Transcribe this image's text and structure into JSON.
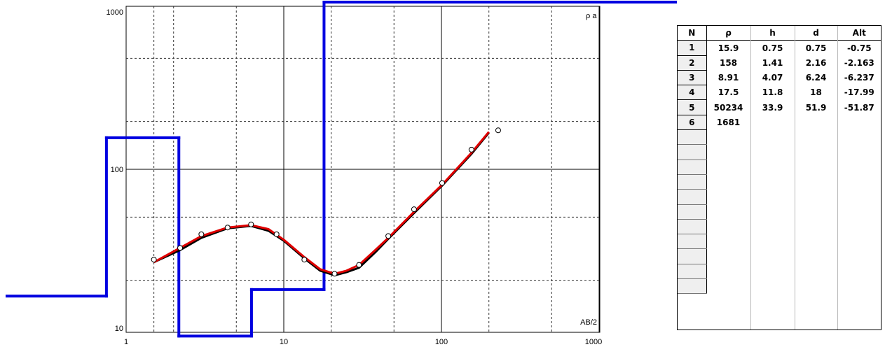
{
  "chart_data": {
    "type": "line",
    "xlabel": "AB/2",
    "ylabel": "ρ a",
    "xscale": "log",
    "yscale": "log",
    "xlim": [
      1,
      1000
    ],
    "ylim": [
      10,
      1000
    ],
    "grid": true,
    "x_ticks": [
      "1",
      "10",
      "100",
      "1000"
    ],
    "y_ticks": [
      "10",
      "100",
      "1000"
    ],
    "observed": {
      "x": [
        1.5,
        2.2,
        3.0,
        4.4,
        6.2,
        9.0,
        13.5,
        21,
        30,
        46,
        67,
        101,
        155,
        229
      ],
      "y": [
        27,
        32,
        39,
        43,
        45,
        39,
        27,
        22,
        25,
        38,
        56,
        82,
        133,
        176
      ]
    },
    "model_curve": {
      "color": "#e00000",
      "x": [
        1.5,
        2.2,
        3.0,
        4.4,
        6.2,
        8.0,
        10,
        13.5,
        17,
        21,
        25,
        30,
        38,
        46,
        67,
        101,
        155,
        200
      ],
      "y": [
        26,
        32,
        38,
        43,
        44.5,
        42,
        36,
        28,
        23.5,
        22,
        23,
        25,
        31,
        37,
        54,
        80,
        127,
        172
      ]
    },
    "computed_curve": {
      "color": "#000000",
      "x": [
        1.5,
        2.2,
        3.0,
        4.4,
        6.2,
        8.0,
        10,
        13.5,
        17,
        21,
        25,
        30,
        38,
        46,
        67,
        101,
        155,
        200
      ],
      "y": [
        26,
        31,
        37,
        42.5,
        44,
        41,
        35.5,
        27.5,
        23,
        21.5,
        22.5,
        24,
        30,
        36.5,
        53,
        79,
        125,
        170
      ]
    },
    "layer_model": {
      "color": "#0000e0",
      "depths": [
        0.75,
        2.16,
        6.24,
        18,
        51.9
      ],
      "resistivities": [
        15.9,
        158,
        8.91,
        17.5,
        50234,
        1681
      ]
    }
  },
  "table": {
    "headers": [
      "N",
      "ρ",
      "h",
      "d",
      "Alt"
    ],
    "rows": [
      [
        "1",
        "15.9",
        "0.75",
        "0.75",
        "-0.75"
      ],
      [
        "2",
        "158",
        "1.41",
        "2.16",
        "-2.163"
      ],
      [
        "3",
        "8.91",
        "4.07",
        "6.24",
        "-6.237"
      ],
      [
        "4",
        "17.5",
        "11.8",
        "18",
        "-17.99"
      ],
      [
        "5",
        "50234",
        "33.9",
        "51.9",
        "-51.87"
      ],
      [
        "6",
        "1681",
        "",
        "",
        ""
      ]
    ],
    "empty_rows": 11
  }
}
